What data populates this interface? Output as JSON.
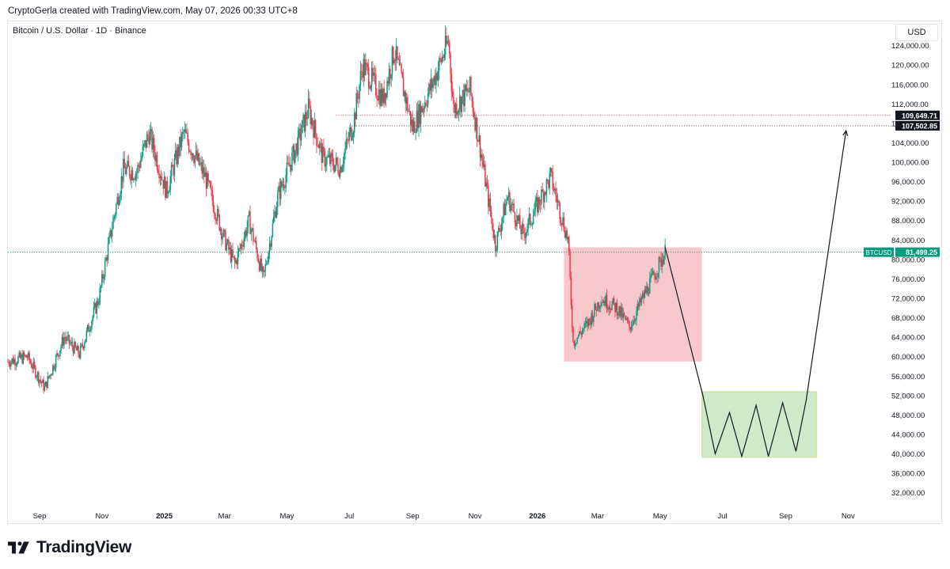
{
  "header": {
    "created_text": "CryptoGerla created with TradingView.com, May 07, 2026 00:33 UTC+8"
  },
  "symbol": {
    "title": "Bitcoin / U.S. Dollar · 1D · Binance"
  },
  "currency_button": {
    "label": "USD"
  },
  "brand": {
    "name": "TradingView"
  },
  "colors": {
    "up": "#089981",
    "down": "#f23645",
    "price_line": "#089981",
    "red_zone": "#f7b5b9",
    "green_zone": "#c6e6c0",
    "green_zone_border": "#c7d98a"
  },
  "chart_data": {
    "type": "candlestick",
    "title": "Bitcoin / U.S. Dollar · 1D · Binance",
    "x_ticks": [
      "Sep",
      "Nov",
      "2025",
      "Mar",
      "May",
      "Jul",
      "Sep",
      "Nov",
      "2026",
      "Mar",
      "May",
      "Jul",
      "Sep",
      "Nov"
    ],
    "y_ticks": [
      "124,000.00",
      "120,000.00",
      "116,000.00",
      "112,000.00",
      "108,000.00",
      "104,000.00",
      "100,000.00",
      "96,000.00",
      "92,000.00",
      "88,000.00",
      "84,000.00",
      "80,000.00",
      "76,000.00",
      "72,000.00",
      "68,000.00",
      "64,000.00",
      "60,000.00",
      "56,000.00",
      "52,000.00",
      "48,000.00",
      "44,000.00",
      "40,000.00",
      "36,000.00",
      "32,000.00"
    ],
    "y_tick_values": [
      124000,
      120000,
      116000,
      112000,
      108000,
      104000,
      100000,
      96000,
      92000,
      88000,
      84000,
      80000,
      76000,
      72000,
      68000,
      64000,
      60000,
      56000,
      52000,
      48000,
      44000,
      40000,
      36000,
      32000
    ],
    "ylim": [
      29500,
      128500
    ],
    "x_range_months": [
      "2024-08-01",
      "2026-12-01"
    ],
    "current_price": {
      "label": "BTCUSD",
      "value": 81499.25,
      "value_text": "81,499.25"
    },
    "resistance_levels": [
      {
        "value": 109649.71,
        "value_text": "109,649.71"
      },
      {
        "value": 107502.85,
        "value_text": "107,502.85"
      }
    ],
    "price_path": [
      [
        "2024-08-01",
        59000
      ],
      [
        "2024-08-20",
        60000
      ],
      [
        "2024-09-06",
        53500
      ],
      [
        "2024-09-25",
        64000
      ],
      [
        "2024-10-10",
        60500
      ],
      [
        "2024-10-29",
        72000
      ],
      [
        "2024-11-12",
        88000
      ],
      [
        "2024-11-22",
        98500
      ],
      [
        "2024-12-05",
        98000
      ],
      [
        "2024-12-17",
        106000
      ],
      [
        "2025-01-03",
        94000
      ],
      [
        "2025-01-20",
        106000
      ],
      [
        "2025-02-10",
        97000
      ],
      [
        "2025-03-01",
        84000
      ],
      [
        "2025-03-11",
        79000
      ],
      [
        "2025-03-25",
        88000
      ],
      [
        "2025-04-08",
        76000
      ],
      [
        "2025-04-22",
        93000
      ],
      [
        "2025-05-10",
        103000
      ],
      [
        "2025-05-22",
        111000
      ],
      [
        "2025-06-05",
        101000
      ],
      [
        "2025-06-22",
        99000
      ],
      [
        "2025-07-05",
        108000
      ],
      [
        "2025-07-14",
        120000
      ],
      [
        "2025-08-03",
        113000
      ],
      [
        "2025-08-14",
        123000
      ],
      [
        "2025-09-01",
        107000
      ],
      [
        "2025-09-20",
        116000
      ],
      [
        "2025-10-06",
        125000
      ],
      [
        "2025-10-11",
        111000
      ],
      [
        "2025-10-27",
        115000
      ],
      [
        "2025-11-06",
        103000
      ],
      [
        "2025-11-21",
        83000
      ],
      [
        "2025-12-03",
        93000
      ],
      [
        "2025-12-18",
        85000
      ],
      [
        "2026-01-05",
        93000
      ],
      [
        "2026-01-14",
        97000
      ],
      [
        "2026-01-31",
        84000
      ],
      [
        "2026-02-05",
        63000
      ],
      [
        "2026-02-20",
        67000
      ],
      [
        "2026-03-04",
        72000
      ],
      [
        "2026-03-20",
        70000
      ],
      [
        "2026-04-01",
        66000
      ],
      [
        "2026-04-14",
        72000
      ],
      [
        "2026-04-28",
        78000
      ],
      [
        "2026-05-06",
        81500
      ]
    ],
    "annotations": {
      "red_zone": {
        "x0": "2026-01-27",
        "x1": "2026-06-11",
        "y0": 59000,
        "y1": 82500
      },
      "green_zone": {
        "x0": "2026-06-11",
        "x1": "2026-10-01",
        "y0": 39300,
        "y1": 52800
      },
      "projection_path": [
        [
          "2026-05-06",
          82500
        ],
        [
          "2026-06-12",
          52000
        ],
        [
          "2026-06-24",
          40000
        ],
        [
          "2026-07-08",
          48500
        ],
        [
          "2026-07-20",
          39500
        ],
        [
          "2026-08-03",
          50000
        ],
        [
          "2026-08-15",
          39500
        ],
        [
          "2026-08-29",
          50500
        ],
        [
          "2026-09-11",
          40500
        ],
        [
          "2026-09-21",
          51000
        ],
        [
          "2026-10-30",
          106500
        ]
      ],
      "arrow_target": [
        "2026-10-30",
        106500
      ]
    }
  }
}
